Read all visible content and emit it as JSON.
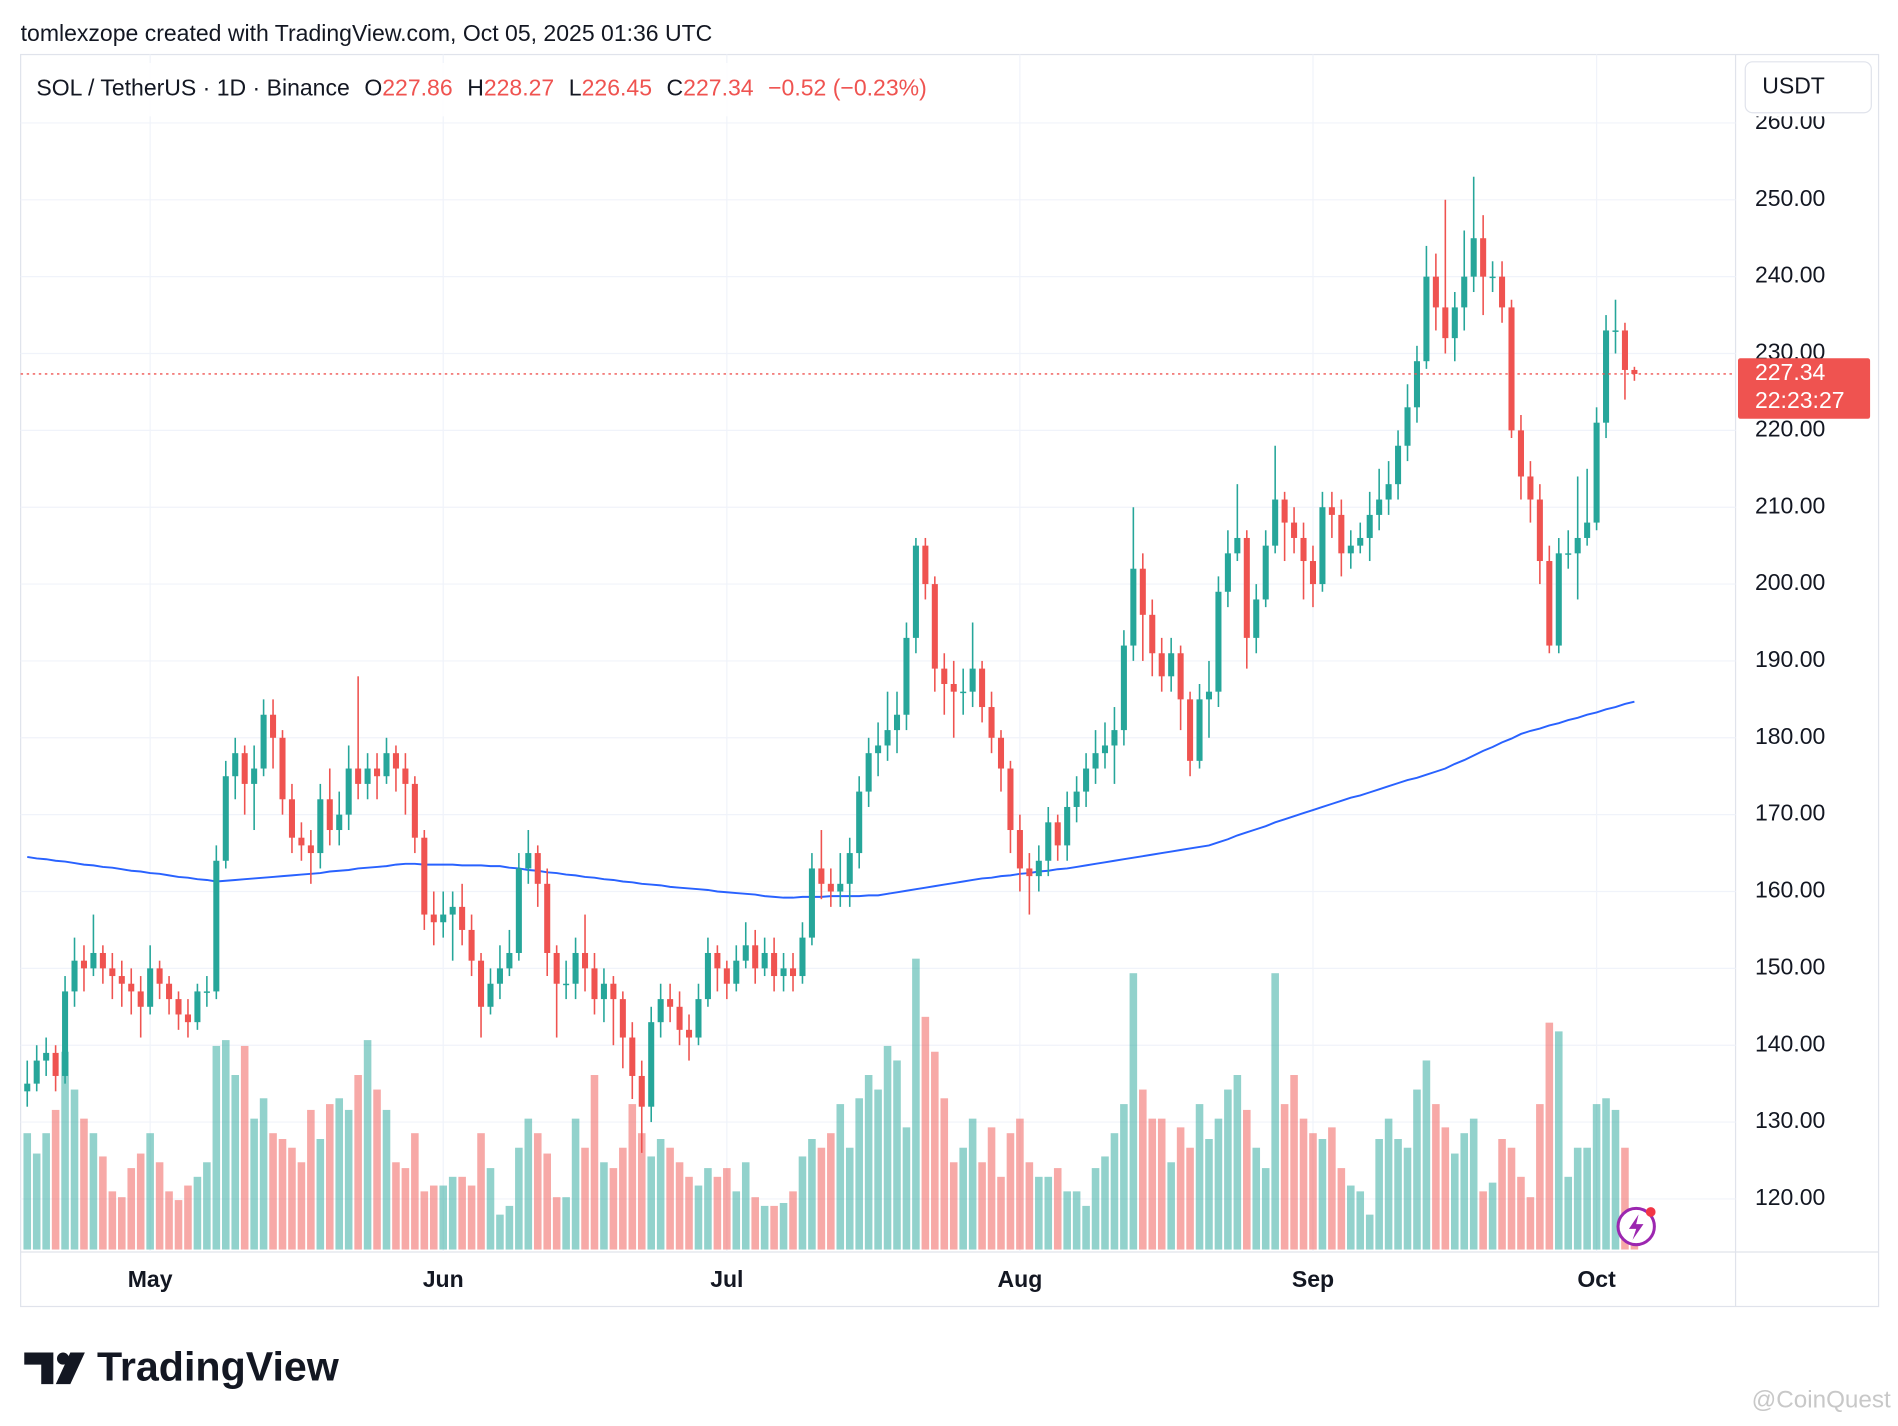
{
  "chart_data": {
    "type": "candlestick",
    "credit": "tomlexzope created with TradingView.com, Oct 05, 2025 01:36 UTC",
    "symbol": "SOL / TetherUS · 1D · Binance",
    "ohlc_labels": [
      "O",
      "H",
      "L",
      "C"
    ],
    "change": "−0.52 (−0.23%)",
    "currency": "USDT",
    "countdown": "22:23:27",
    "brand": "TradingView",
    "watermark": "@CoinQuest",
    "up_color": "#26a69a",
    "down_color": "#ef5350",
    "ma_color": "#2962ff",
    "grid": true,
    "ylim": [
      113.1,
      268.9
    ],
    "yticks": [
      {
        "value": 120,
        "label": "120.00"
      },
      {
        "value": 130,
        "label": "130.00"
      },
      {
        "value": 140,
        "label": "140.00"
      },
      {
        "value": 150,
        "label": "150.00"
      },
      {
        "value": 160,
        "label": "160.00"
      },
      {
        "value": 170,
        "label": "170.00"
      },
      {
        "value": 180,
        "label": "180.00"
      },
      {
        "value": 190,
        "label": "190.00"
      },
      {
        "value": 200,
        "label": "200.00"
      },
      {
        "value": 210,
        "label": "210.00"
      },
      {
        "value": 220,
        "label": "220.00"
      },
      {
        "value": 230,
        "label": "230.00"
      },
      {
        "value": 240,
        "label": "240.00"
      },
      {
        "value": 250,
        "label": "250.00"
      },
      {
        "value": 260,
        "label": "260.00"
      }
    ],
    "categories": [
      null,
      null,
      null,
      null,
      null,
      null,
      null,
      null,
      null,
      null,
      null,
      null,
      null,
      "May",
      null,
      null,
      null,
      null,
      null,
      null,
      null,
      null,
      null,
      null,
      null,
      null,
      null,
      null,
      null,
      null,
      null,
      null,
      null,
      null,
      null,
      null,
      null,
      null,
      null,
      null,
      null,
      null,
      null,
      null,
      "Jun",
      null,
      null,
      null,
      null,
      null,
      null,
      null,
      null,
      null,
      null,
      null,
      null,
      null,
      null,
      null,
      null,
      null,
      null,
      null,
      null,
      null,
      null,
      null,
      null,
      null,
      null,
      null,
      null,
      null,
      "Jul",
      null,
      null,
      null,
      null,
      null,
      null,
      null,
      null,
      null,
      null,
      null,
      null,
      null,
      null,
      null,
      null,
      null,
      null,
      null,
      null,
      null,
      null,
      null,
      null,
      null,
      null,
      null,
      null,
      null,
      null,
      "Aug",
      null,
      null,
      null,
      null,
      null,
      null,
      null,
      null,
      null,
      null,
      null,
      null,
      null,
      null,
      null,
      null,
      null,
      null,
      null,
      null,
      null,
      null,
      null,
      null,
      null,
      null,
      null,
      null,
      null,
      null,
      "Sep",
      null,
      null,
      null,
      null,
      null,
      null,
      null,
      null,
      null,
      null,
      null,
      null,
      null,
      null,
      null,
      null,
      null,
      null,
      null,
      null,
      null,
      null,
      null,
      null,
      null,
      null,
      null,
      null,
      null,
      "Oct",
      null,
      null,
      null,
      null
    ],
    "open": [
      134,
      135,
      138,
      139,
      136,
      147,
      151,
      150,
      152,
      150,
      149,
      148,
      147,
      145,
      150,
      148,
      146,
      144,
      143,
      147,
      147,
      164,
      175,
      178,
      174,
      176,
      183,
      180,
      172,
      167,
      166,
      165,
      172,
      168,
      170,
      176,
      174,
      176,
      175,
      178,
      176,
      174,
      167,
      157,
      156,
      157,
      158,
      155,
      151,
      145,
      148,
      150,
      152,
      163,
      165,
      161,
      152,
      148,
      148,
      152,
      150,
      146,
      148,
      146,
      141,
      136,
      132,
      143,
      146,
      145,
      142,
      141,
      146,
      152,
      150,
      148,
      151,
      153,
      150,
      152,
      149,
      150,
      149,
      154,
      163,
      161,
      160,
      161,
      165,
      173,
      178,
      179,
      181,
      183,
      193,
      205,
      200,
      189,
      187,
      186,
      186,
      189,
      184,
      180,
      176,
      168,
      163,
      162,
      164,
      169,
      166,
      171,
      173,
      176,
      178,
      179,
      181,
      192,
      202,
      196,
      191,
      188,
      191,
      185,
      177,
      185,
      186,
      199,
      204,
      206,
      193,
      198,
      205,
      211,
      208,
      206,
      203,
      200,
      210,
      209,
      204,
      205,
      206,
      209,
      211,
      213,
      218,
      223,
      229,
      240,
      236,
      232,
      236,
      240,
      245,
      240,
      240,
      236,
      220,
      214,
      211,
      203,
      192,
      204,
      204,
      206,
      208,
      221,
      233,
      233,
      227.86
    ],
    "high": [
      138,
      140,
      141,
      140,
      149,
      154,
      153,
      157,
      153,
      152,
      151,
      150,
      149,
      153,
      151,
      149,
      147,
      146,
      148,
      149,
      166,
      177,
      180,
      179,
      179,
      185,
      185,
      181,
      174,
      169,
      168,
      174,
      176,
      173,
      179,
      188,
      178,
      178,
      180,
      179,
      178,
      175,
      168,
      160,
      160,
      160,
      161,
      157,
      152,
      150,
      153,
      155,
      165,
      168,
      166,
      163,
      153,
      151,
      154,
      157,
      152,
      150,
      149,
      147,
      143,
      138,
      145,
      148,
      148,
      147,
      144,
      148,
      154,
      153,
      151,
      153,
      156,
      155,
      154,
      154,
      152,
      152,
      156,
      165,
      168,
      163,
      165,
      167,
      175,
      180,
      182,
      186,
      186,
      195,
      206,
      206,
      201,
      191,
      190,
      189,
      195,
      190,
      186,
      181,
      177,
      170,
      165,
      166,
      171,
      170,
      173,
      175,
      178,
      181,
      182,
      184,
      194,
      210,
      204,
      198,
      193,
      193,
      192,
      186,
      187,
      190,
      201,
      207,
      213,
      207,
      200,
      207,
      218,
      212,
      210,
      208,
      205,
      212,
      212,
      211,
      207,
      208,
      212,
      215,
      216,
      220,
      226,
      231,
      244,
      243,
      250,
      238,
      246,
      253,
      248,
      242,
      242,
      237,
      222,
      216,
      213,
      205,
      206,
      207,
      214,
      215,
      223,
      235,
      237,
      234,
      228.27
    ],
    "low": [
      132,
      134,
      136,
      134,
      135,
      145,
      147,
      149,
      148,
      146,
      145,
      144,
      141,
      144,
      146,
      144,
      142,
      141,
      142,
      145,
      146,
      163,
      172,
      170,
      168,
      175,
      176,
      170,
      165,
      164,
      161,
      163,
      166,
      166,
      168,
      172,
      172,
      172,
      174,
      173,
      170,
      165,
      155,
      153,
      154,
      151,
      153,
      149,
      141,
      144,
      146,
      149,
      151,
      161,
      158,
      149,
      141,
      146,
      146,
      147,
      144,
      143,
      140,
      137,
      133,
      126,
      130,
      141,
      143,
      140,
      138,
      140,
      145,
      147,
      146,
      147,
      150,
      148,
      149,
      147,
      147,
      147,
      148,
      153,
      159,
      158,
      158,
      158,
      163,
      171,
      175,
      177,
      178,
      181,
      191,
      198,
      186,
      183,
      180,
      183,
      184,
      182,
      178,
      173,
      165,
      160,
      157,
      160,
      162,
      164,
      164,
      169,
      171,
      174,
      176,
      174,
      179,
      190,
      190,
      188,
      186,
      186,
      181,
      175,
      176,
      180,
      184,
      197,
      203,
      189,
      191,
      197,
      204,
      203,
      204,
      198,
      197,
      199,
      206,
      201,
      202,
      204,
      203,
      207,
      209,
      211,
      216,
      221,
      228,
      233,
      230,
      229,
      233,
      238,
      235,
      238,
      234,
      219,
      211,
      208,
      200,
      191,
      191,
      202,
      198,
      205,
      207,
      219,
      230,
      224,
      226.45
    ],
    "close": [
      135,
      138,
      139,
      136,
      147,
      151,
      150,
      152,
      150,
      149,
      148,
      147,
      145,
      150,
      148,
      146,
      144,
      143,
      147,
      147,
      164,
      175,
      178,
      174,
      176,
      183,
      180,
      172,
      167,
      166,
      165,
      172,
      168,
      170,
      176,
      174,
      176,
      175,
      178,
      176,
      174,
      167,
      157,
      156,
      157,
      158,
      155,
      151,
      145,
      148,
      150,
      152,
      163,
      165,
      161,
      152,
      148,
      148,
      152,
      150,
      146,
      148,
      146,
      141,
      136,
      132,
      143,
      146,
      145,
      142,
      141,
      146,
      152,
      150,
      148,
      151,
      153,
      150,
      152,
      149,
      150,
      149,
      154,
      163,
      161,
      160,
      161,
      165,
      173,
      178,
      179,
      181,
      183,
      193,
      205,
      200,
      189,
      187,
      186,
      186,
      189,
      184,
      180,
      176,
      168,
      163,
      162,
      164,
      169,
      166,
      171,
      173,
      176,
      178,
      179,
      181,
      192,
      202,
      196,
      191,
      188,
      191,
      185,
      177,
      185,
      186,
      199,
      204,
      206,
      193,
      198,
      205,
      211,
      208,
      206,
      203,
      200,
      210,
      209,
      204,
      205,
      206,
      209,
      211,
      213,
      218,
      223,
      229,
      240,
      236,
      232,
      236,
      240,
      245,
      240,
      240,
      236,
      220,
      214,
      211,
      203,
      192,
      204,
      204,
      206,
      208,
      221,
      233,
      233,
      227.86,
      227.34
    ],
    "volume": [
      40,
      33,
      40,
      48,
      68,
      55,
      45,
      40,
      32,
      20,
      18,
      28,
      33,
      40,
      30,
      20,
      17,
      22,
      25,
      30,
      70,
      72,
      60,
      70,
      45,
      52,
      40,
      38,
      35,
      30,
      48,
      38,
      50,
      52,
      48,
      60,
      72,
      55,
      48,
      30,
      28,
      40,
      20,
      22,
      22,
      25,
      25,
      22,
      40,
      28,
      12,
      15,
      35,
      45,
      40,
      33,
      18,
      18,
      45,
      35,
      60,
      30,
      28,
      35,
      50,
      40,
      32,
      38,
      35,
      30,
      25,
      22,
      28,
      25,
      28,
      20,
      30,
      18,
      15,
      15,
      16,
      20,
      32,
      38,
      35,
      40,
      50,
      35,
      52,
      60,
      55,
      70,
      65,
      42,
      100,
      80,
      68,
      52,
      30,
      35,
      45,
      30,
      42,
      25,
      40,
      45,
      30,
      25,
      25,
      28,
      20,
      20,
      15,
      28,
      32,
      40,
      50,
      95,
      55,
      45,
      45,
      30,
      42,
      35,
      50,
      38,
      45,
      55,
      60,
      48,
      35,
      28,
      95,
      50,
      60,
      45,
      40,
      38,
      42,
      28,
      22,
      20,
      12,
      38,
      45,
      38,
      35,
      55,
      65,
      50,
      42,
      33,
      40,
      45,
      20,
      23,
      38,
      35,
      25,
      18,
      50,
      78,
      75,
      25,
      35,
      35,
      50,
      52,
      48,
      35,
      8
    ],
    "ma": [
      164.5,
      164.3,
      164.2,
      164.0,
      163.9,
      163.7,
      163.5,
      163.4,
      163.2,
      163.1,
      162.9,
      162.7,
      162.6,
      162.4,
      162.3,
      162.1,
      161.9,
      161.8,
      161.6,
      161.5,
      161.3,
      161.4,
      161.5,
      161.6,
      161.7,
      161.8,
      161.9,
      162.0,
      162.1,
      162.2,
      162.3,
      162.4,
      162.6,
      162.7,
      162.8,
      163.0,
      163.1,
      163.2,
      163.3,
      163.5,
      163.6,
      163.6,
      163.5,
      163.5,
      163.5,
      163.5,
      163.4,
      163.4,
      163.4,
      163.3,
      163.3,
      163.1,
      163.0,
      162.8,
      162.7,
      162.5,
      162.4,
      162.2,
      162.1,
      161.9,
      161.8,
      161.6,
      161.5,
      161.3,
      161.2,
      161.0,
      160.9,
      160.8,
      160.6,
      160.5,
      160.4,
      160.3,
      160.2,
      160.0,
      159.9,
      159.8,
      159.7,
      159.6,
      159.4,
      159.3,
      159.2,
      159.2,
      159.3,
      159.3,
      159.3,
      159.4,
      159.4,
      159.4,
      159.4,
      159.5,
      159.5,
      159.7,
      159.9,
      160.1,
      160.3,
      160.5,
      160.7,
      160.9,
      161.1,
      161.3,
      161.5,
      161.7,
      161.8,
      162.0,
      162.1,
      162.3,
      162.4,
      162.6,
      162.7,
      162.9,
      163.0,
      163.2,
      163.4,
      163.6,
      163.8,
      164.0,
      164.2,
      164.4,
      164.6,
      164.8,
      165.0,
      165.2,
      165.4,
      165.6,
      165.8,
      166.0,
      166.4,
      166.8,
      167.3,
      167.7,
      168.1,
      168.5,
      169.0,
      169.4,
      169.8,
      170.2,
      170.6,
      171.0,
      171.4,
      171.8,
      172.2,
      172.5,
      172.9,
      173.3,
      173.7,
      174.1,
      174.5,
      174.8,
      175.2,
      175.6,
      176.0,
      176.6,
      177.1,
      177.7,
      178.3,
      178.8,
      179.4,
      179.9,
      180.5,
      180.9,
      181.2,
      181.6,
      181.9,
      182.3,
      182.6,
      183.0,
      183.3,
      183.7,
      184.0,
      184.4,
      184.7
    ]
  }
}
